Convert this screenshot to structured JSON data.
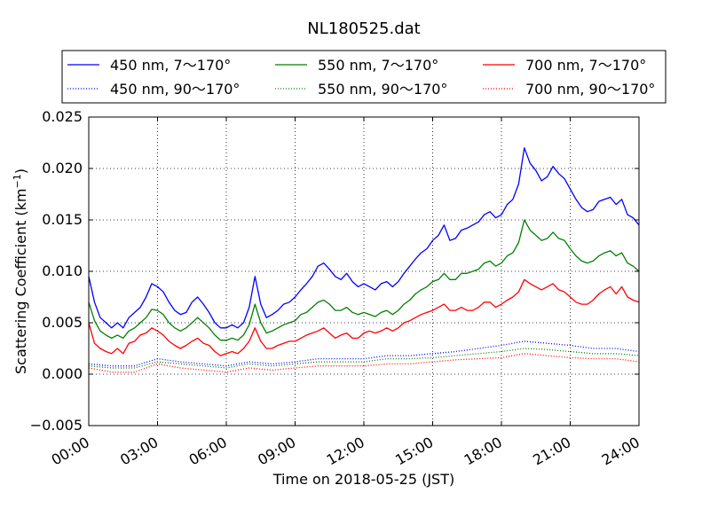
{
  "chart_data": {
    "type": "line",
    "title": "NL180525.dat",
    "xlabel": "Time on 2018-05-25 (JST)",
    "ylabel": "Scattering Coefficient (km",
    "ylabel_sup": "−1",
    "ylabel_close": ")",
    "xlim": [
      0,
      24
    ],
    "ylim": [
      -0.005,
      0.025
    ],
    "x_ticks": [
      0,
      3,
      6,
      9,
      12,
      15,
      18,
      21,
      24
    ],
    "x_tick_labels": [
      "00:00",
      "03:00",
      "06:00",
      "09:00",
      "12:00",
      "15:00",
      "18:00",
      "21:00",
      "24:00"
    ],
    "y_ticks": [
      -0.005,
      0.0,
      0.005,
      0.01,
      0.015,
      0.02,
      0.025
    ],
    "y_tick_labels": [
      "−0.005",
      "0.000",
      "0.005",
      "0.010",
      "0.015",
      "0.020",
      "0.025"
    ],
    "grid": true,
    "legend_position": "top, above plot (3 columns)",
    "series": [
      {
        "name": "450 nm, 7～170°",
        "color": "#0000ff",
        "style": "solid",
        "x": [
          0,
          0.25,
          0.5,
          0.75,
          1,
          1.25,
          1.5,
          1.75,
          2,
          2.25,
          2.5,
          2.75,
          3,
          3.25,
          3.5,
          3.75,
          4,
          4.25,
          4.5,
          4.75,
          5,
          5.25,
          5.5,
          5.75,
          6,
          6.25,
          6.5,
          6.75,
          7,
          7.25,
          7.5,
          7.75,
          8,
          8.25,
          8.5,
          8.75,
          9,
          9.25,
          9.5,
          9.75,
          10,
          10.25,
          10.5,
          10.75,
          11,
          11.25,
          11.5,
          11.75,
          12,
          12.25,
          12.5,
          12.75,
          13,
          13.25,
          13.5,
          13.75,
          14,
          14.25,
          14.5,
          14.75,
          15,
          15.25,
          15.5,
          15.75,
          16,
          16.25,
          16.5,
          16.75,
          17,
          17.25,
          17.5,
          17.75,
          18,
          18.25,
          18.5,
          18.75,
          19,
          19.25,
          19.5,
          19.75,
          20,
          20.25,
          20.5,
          20.75,
          21,
          21.25,
          21.5,
          21.75,
          22,
          22.25,
          22.5,
          22.75,
          23,
          23.25,
          23.5,
          23.75,
          24
        ],
        "y": [
          0.0095,
          0.007,
          0.0055,
          0.005,
          0.0045,
          0.005,
          0.0045,
          0.0055,
          0.006,
          0.0065,
          0.0075,
          0.0088,
          0.0085,
          0.008,
          0.007,
          0.0062,
          0.0058,
          0.006,
          0.007,
          0.0075,
          0.0068,
          0.006,
          0.005,
          0.0045,
          0.0045,
          0.0048,
          0.0045,
          0.005,
          0.0065,
          0.0095,
          0.0068,
          0.0055,
          0.0058,
          0.0062,
          0.0068,
          0.007,
          0.0075,
          0.0082,
          0.0088,
          0.0095,
          0.0105,
          0.0108,
          0.0102,
          0.0095,
          0.0092,
          0.0098,
          0.009,
          0.0085,
          0.0088,
          0.0085,
          0.0082,
          0.0088,
          0.009,
          0.0085,
          0.009,
          0.0098,
          0.0105,
          0.0112,
          0.0118,
          0.0122,
          0.013,
          0.0135,
          0.0145,
          0.013,
          0.0132,
          0.014,
          0.0142,
          0.0145,
          0.0148,
          0.0155,
          0.0158,
          0.0152,
          0.0155,
          0.0165,
          0.017,
          0.0185,
          0.022,
          0.0205,
          0.0198,
          0.0188,
          0.0192,
          0.0202,
          0.0195,
          0.019,
          0.018,
          0.017,
          0.0162,
          0.0158,
          0.016,
          0.0168,
          0.017,
          0.0172,
          0.0165,
          0.017,
          0.0155,
          0.0152,
          0.0145
        ]
      },
      {
        "name": "450 nm, 90～170°",
        "color": "#0000ff",
        "style": "dotted",
        "x": [
          0,
          1,
          2,
          3,
          4,
          5,
          6,
          7,
          8,
          9,
          10,
          11,
          12,
          13,
          14,
          15,
          16,
          17,
          18,
          19,
          20,
          21,
          22,
          23,
          24
        ],
        "y": [
          0.001,
          0.0008,
          0.0008,
          0.0015,
          0.0012,
          0.001,
          0.0008,
          0.0012,
          0.001,
          0.0012,
          0.0015,
          0.0015,
          0.0015,
          0.0018,
          0.0018,
          0.002,
          0.0022,
          0.0025,
          0.0028,
          0.0032,
          0.003,
          0.0028,
          0.0025,
          0.0025,
          0.0022
        ]
      },
      {
        "name": "550 nm, 7～170°",
        "color": "#008000",
        "style": "solid",
        "x": [
          0,
          0.25,
          0.5,
          0.75,
          1,
          1.25,
          1.5,
          1.75,
          2,
          2.25,
          2.5,
          2.75,
          3,
          3.25,
          3.5,
          3.75,
          4,
          4.25,
          4.5,
          4.75,
          5,
          5.25,
          5.5,
          5.75,
          6,
          6.25,
          6.5,
          6.75,
          7,
          7.25,
          7.5,
          7.75,
          8,
          8.25,
          8.5,
          8.75,
          9,
          9.25,
          9.5,
          9.75,
          10,
          10.25,
          10.5,
          10.75,
          11,
          11.25,
          11.5,
          11.75,
          12,
          12.25,
          12.5,
          12.75,
          13,
          13.25,
          13.5,
          13.75,
          14,
          14.25,
          14.5,
          14.75,
          15,
          15.25,
          15.5,
          15.75,
          16,
          16.25,
          16.5,
          16.75,
          17,
          17.25,
          17.5,
          17.75,
          18,
          18.25,
          18.5,
          18.75,
          19,
          19.25,
          19.5,
          19.75,
          20,
          20.25,
          20.5,
          20.75,
          21,
          21.25,
          21.5,
          21.75,
          22,
          22.25,
          22.5,
          22.75,
          23,
          23.25,
          23.5,
          23.75,
          24
        ],
        "y": [
          0.007,
          0.0052,
          0.0042,
          0.0038,
          0.0035,
          0.0038,
          0.0035,
          0.0042,
          0.0045,
          0.005,
          0.0055,
          0.0063,
          0.0062,
          0.0058,
          0.005,
          0.0045,
          0.0042,
          0.0045,
          0.005,
          0.0055,
          0.005,
          0.0045,
          0.0038,
          0.0033,
          0.0033,
          0.0035,
          0.0033,
          0.0038,
          0.0048,
          0.0068,
          0.005,
          0.004,
          0.0042,
          0.0045,
          0.0048,
          0.005,
          0.0052,
          0.0058,
          0.006,
          0.0065,
          0.007,
          0.0072,
          0.0068,
          0.0062,
          0.0062,
          0.0065,
          0.006,
          0.0058,
          0.006,
          0.0058,
          0.0056,
          0.006,
          0.0062,
          0.0058,
          0.0062,
          0.0068,
          0.0072,
          0.0078,
          0.0082,
          0.0085,
          0.009,
          0.0092,
          0.0098,
          0.0092,
          0.0092,
          0.0098,
          0.0098,
          0.01,
          0.0102,
          0.0108,
          0.011,
          0.0105,
          0.0108,
          0.0115,
          0.0118,
          0.0128,
          0.015,
          0.014,
          0.0135,
          0.013,
          0.0132,
          0.0138,
          0.0132,
          0.013,
          0.0122,
          0.0115,
          0.011,
          0.0108,
          0.011,
          0.0115,
          0.0118,
          0.012,
          0.0115,
          0.0118,
          0.0108,
          0.0105,
          0.01
        ]
      },
      {
        "name": "550 nm, 90～170°",
        "color": "#008000",
        "style": "dotted",
        "x": [
          0,
          1,
          2,
          3,
          4,
          5,
          6,
          7,
          8,
          9,
          10,
          11,
          12,
          13,
          14,
          15,
          16,
          17,
          18,
          19,
          20,
          21,
          22,
          23,
          24
        ],
        "y": [
          0.0008,
          0.0006,
          0.0006,
          0.0012,
          0.001,
          0.0008,
          0.0006,
          0.001,
          0.0008,
          0.001,
          0.0012,
          0.0012,
          0.0012,
          0.0015,
          0.0015,
          0.0016,
          0.0018,
          0.002,
          0.0022,
          0.0025,
          0.0024,
          0.0022,
          0.002,
          0.002,
          0.0018
        ]
      },
      {
        "name": "700 nm, 7～170°",
        "color": "#ff0000",
        "style": "solid",
        "x": [
          0,
          0.25,
          0.5,
          0.75,
          1,
          1.25,
          1.5,
          1.75,
          2,
          2.25,
          2.5,
          2.75,
          3,
          3.25,
          3.5,
          3.75,
          4,
          4.25,
          4.5,
          4.75,
          5,
          5.25,
          5.5,
          5.75,
          6,
          6.25,
          6.5,
          6.75,
          7,
          7.25,
          7.5,
          7.75,
          8,
          8.25,
          8.5,
          8.75,
          9,
          9.25,
          9.5,
          9.75,
          10,
          10.25,
          10.5,
          10.75,
          11,
          11.25,
          11.5,
          11.75,
          12,
          12.25,
          12.5,
          12.75,
          13,
          13.25,
          13.5,
          13.75,
          14,
          14.25,
          14.5,
          14.75,
          15,
          15.25,
          15.5,
          15.75,
          16,
          16.25,
          16.5,
          16.75,
          17,
          17.25,
          17.5,
          17.75,
          18,
          18.25,
          18.5,
          18.75,
          19,
          19.25,
          19.5,
          19.75,
          20,
          20.25,
          20.5,
          20.75,
          21,
          21.25,
          21.5,
          21.75,
          22,
          22.25,
          22.5,
          22.75,
          23,
          23.25,
          23.5,
          23.75,
          24
        ],
        "y": [
          0.005,
          0.003,
          0.0025,
          0.0022,
          0.002,
          0.0025,
          0.002,
          0.003,
          0.0032,
          0.0038,
          0.004,
          0.0045,
          0.0042,
          0.0038,
          0.0032,
          0.0028,
          0.0025,
          0.0028,
          0.0032,
          0.0035,
          0.003,
          0.0028,
          0.0022,
          0.0018,
          0.002,
          0.0022,
          0.002,
          0.0025,
          0.0032,
          0.0045,
          0.0032,
          0.0025,
          0.0025,
          0.0028,
          0.003,
          0.0032,
          0.0032,
          0.0035,
          0.0038,
          0.004,
          0.0042,
          0.0045,
          0.004,
          0.0035,
          0.0038,
          0.004,
          0.0035,
          0.0035,
          0.004,
          0.0042,
          0.004,
          0.0042,
          0.0045,
          0.0042,
          0.0045,
          0.005,
          0.0052,
          0.0055,
          0.0058,
          0.006,
          0.0062,
          0.0065,
          0.0068,
          0.0062,
          0.0062,
          0.0065,
          0.0062,
          0.0062,
          0.0065,
          0.007,
          0.007,
          0.0065,
          0.0068,
          0.0072,
          0.0075,
          0.008,
          0.0092,
          0.0088,
          0.0085,
          0.0082,
          0.0085,
          0.0088,
          0.0082,
          0.008,
          0.0075,
          0.007,
          0.0068,
          0.0068,
          0.0072,
          0.0078,
          0.0082,
          0.0085,
          0.0078,
          0.0085,
          0.0075,
          0.0072,
          0.007
        ]
      },
      {
        "name": "700 nm, 90～170°",
        "color": "#ff0000",
        "style": "dotted",
        "x": [
          0,
          1,
          2,
          3,
          4,
          5,
          6,
          7,
          8,
          9,
          10,
          11,
          12,
          13,
          14,
          15,
          16,
          17,
          18,
          19,
          20,
          21,
          22,
          23,
          24
        ],
        "y": [
          0.0006,
          0.0002,
          0.0002,
          0.001,
          0.0006,
          0.0004,
          0.0002,
          0.0006,
          0.0004,
          0.0006,
          0.0008,
          0.0008,
          0.0008,
          0.001,
          0.001,
          0.0012,
          0.0014,
          0.0015,
          0.0016,
          0.002,
          0.0018,
          0.0016,
          0.0015,
          0.0015,
          0.0012
        ]
      }
    ]
  }
}
